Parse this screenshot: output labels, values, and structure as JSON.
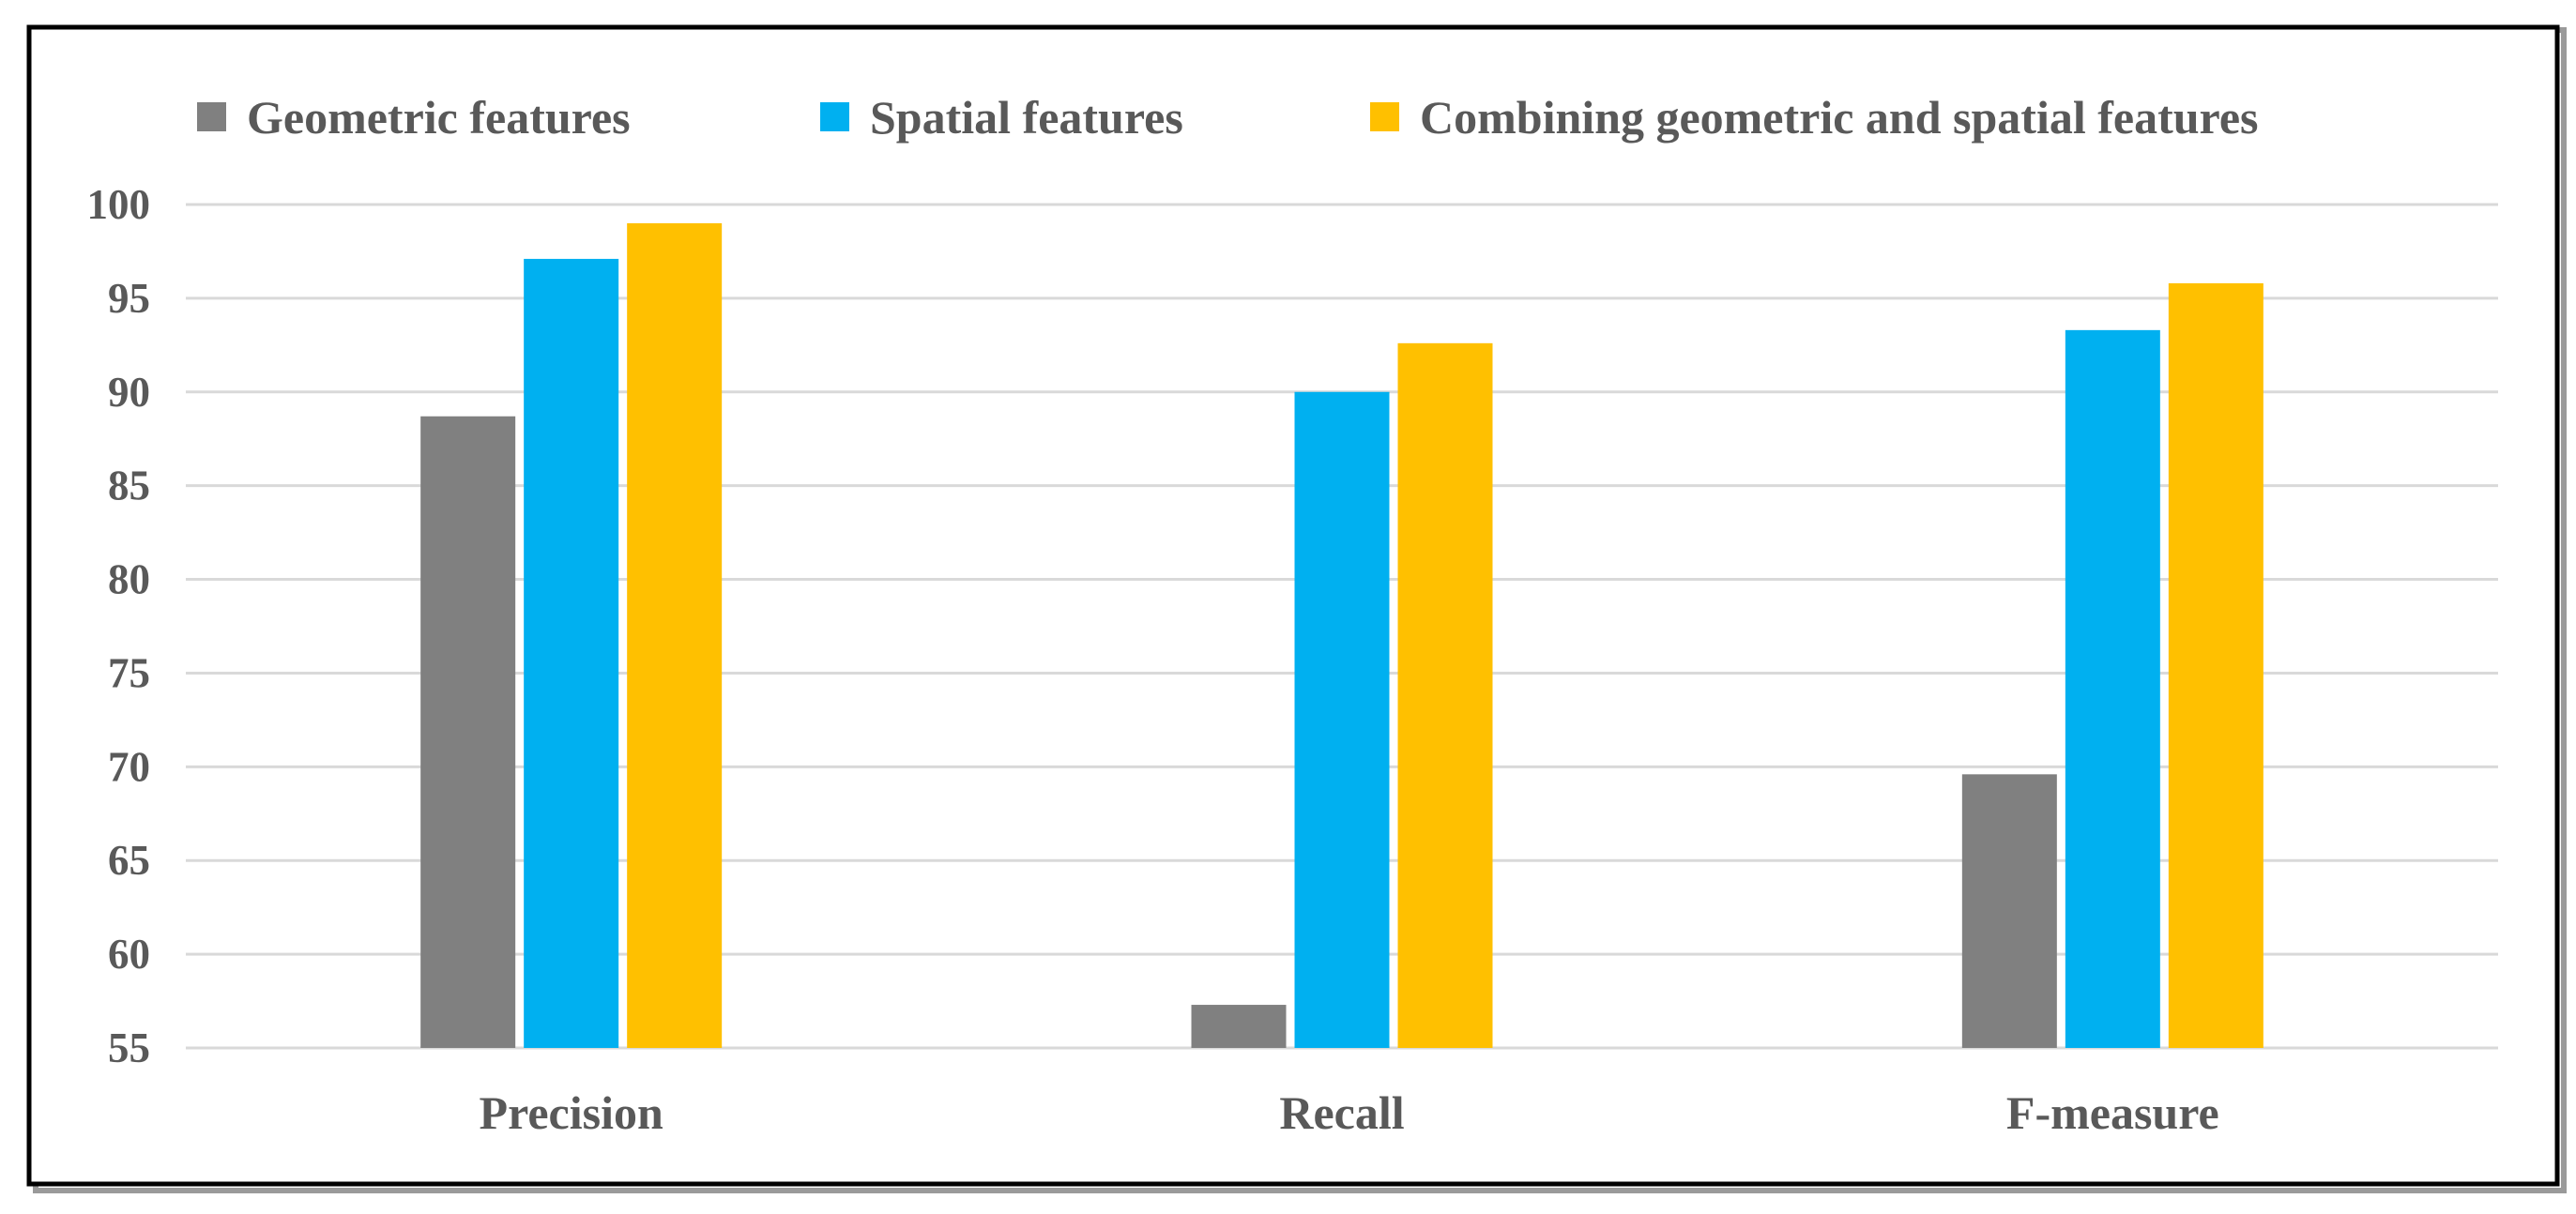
{
  "chart_data": {
    "type": "bar",
    "categories": [
      "Precision",
      "Recall",
      "F-measure"
    ],
    "series": [
      {
        "name": "Geometric features",
        "color": "#808080",
        "values": [
          88.7,
          57.3,
          69.6
        ]
      },
      {
        "name": "Spatial features",
        "color": "#00B0F0",
        "values": [
          97.1,
          90.0,
          93.3
        ]
      },
      {
        "name": "Combining geometric and spatial features",
        "color": "#FFC000",
        "values": [
          99.0,
          92.6,
          95.8
        ]
      }
    ],
    "ylim": [
      55,
      100
    ],
    "yticks": [
      "55",
      "60",
      "65",
      "70",
      "75",
      "80",
      "85",
      "90",
      "95",
      "100"
    ],
    "grid": true,
    "legend_position": "top",
    "title": "",
    "xlabel": "",
    "ylabel": ""
  }
}
